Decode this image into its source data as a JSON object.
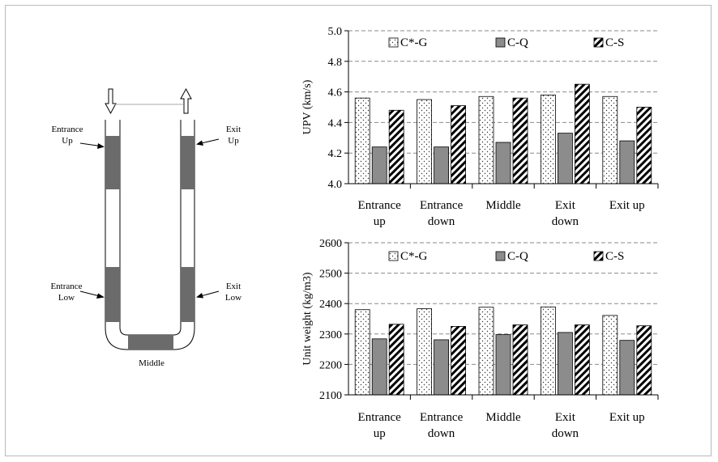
{
  "diagram": {
    "labels": {
      "entrance_up": [
        "Entrance",
        "Up"
      ],
      "exit_up": [
        "Exit",
        "Up"
      ],
      "entrance_low": [
        "Entrance",
        "Low"
      ],
      "exit_low": [
        "Exit",
        "Low"
      ],
      "middle": "Middle"
    }
  },
  "chart_data": [
    {
      "type": "bar",
      "title": "",
      "xlabel": "",
      "ylabel": "UPV (km/s)",
      "ylim": [
        4.0,
        5.0
      ],
      "yticks": [
        "4.0",
        "4.2",
        "4.4",
        "4.6",
        "4.8",
        "5.0"
      ],
      "ytick_values": [
        4.0,
        4.2,
        4.4,
        4.6,
        4.8,
        5.0
      ],
      "categories": [
        [
          "Entrance",
          "up"
        ],
        [
          "Entrance",
          "down"
        ],
        [
          "Middle"
        ],
        [
          "Exit",
          "down"
        ],
        [
          "Exit up"
        ]
      ],
      "grid": "horizontal dashed",
      "legend_position": "top",
      "series": [
        {
          "name": "C*-G",
          "pattern": "dots",
          "values": [
            4.56,
            4.55,
            4.57,
            4.58,
            4.57
          ]
        },
        {
          "name": "C-Q",
          "pattern": "gray",
          "values": [
            4.24,
            4.24,
            4.27,
            4.33,
            4.28
          ]
        },
        {
          "name": "C-S",
          "pattern": "diagonal",
          "values": [
            4.48,
            4.51,
            4.56,
            4.65,
            4.5
          ]
        }
      ]
    },
    {
      "type": "bar",
      "title": "",
      "xlabel": "",
      "ylabel": "Unit weight (kg/m3)",
      "ylim": [
        2100,
        2600
      ],
      "yticks": [
        "2100",
        "2200",
        "2300",
        "2400",
        "2500",
        "2600"
      ],
      "ytick_values": [
        2100,
        2200,
        2300,
        2400,
        2500,
        2600
      ],
      "categories": [
        [
          "Entrance",
          "up"
        ],
        [
          "Entrance",
          "down"
        ],
        [
          "Middle"
        ],
        [
          "Exit",
          "down"
        ],
        [
          "Exit up"
        ]
      ],
      "grid": "horizontal dashed",
      "legend_position": "top",
      "series": [
        {
          "name": "C*-G",
          "pattern": "dots",
          "values": [
            2380,
            2383,
            2388,
            2389,
            2361
          ]
        },
        {
          "name": "C-Q",
          "pattern": "gray",
          "values": [
            2284,
            2281,
            2298,
            2305,
            2279
          ]
        },
        {
          "name": "C-S",
          "pattern": "diagonal",
          "values": [
            2332,
            2325,
            2330,
            2330,
            2327
          ]
        }
      ]
    }
  ]
}
